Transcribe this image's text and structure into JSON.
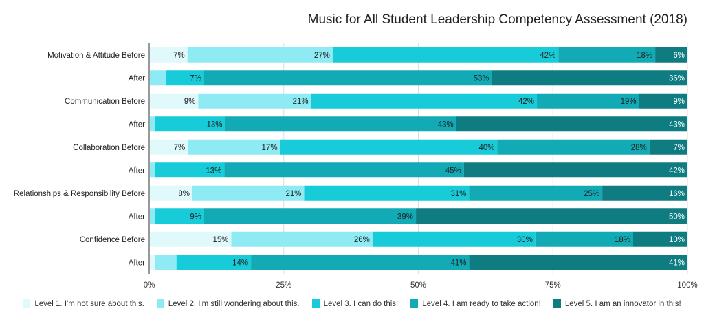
{
  "chart_data": {
    "type": "bar",
    "orientation": "horizontal-stacked-100",
    "title": "Music for All Student Leadership Competency Assessment (2018)",
    "categories": [
      "Motivation & Attitude Before",
      "After",
      "Communication Before",
      "After",
      "Collaboration Before",
      "After",
      "Relationships & Responsibility Before",
      "After",
      "Confidence Before",
      "After"
    ],
    "series": [
      {
        "name": "Level 1. I'm not sure about this.",
        "color": "#e0f9fb",
        "values": [
          7,
          0,
          9,
          0,
          7,
          0,
          8,
          0,
          15,
          1
        ]
      },
      {
        "name": "Level 2. I'm still wondering about this.",
        "color": "#8eeaf3",
        "values": [
          27,
          3,
          21,
          1,
          17,
          1,
          21,
          1,
          26,
          4
        ]
      },
      {
        "name": "Level 3. I can do this!",
        "color": "#17ccd8",
        "values": [
          42,
          7,
          42,
          13,
          40,
          13,
          31,
          9,
          30,
          14
        ]
      },
      {
        "name": "Level 4. I am ready to take action!",
        "color": "#12aab5",
        "values": [
          18,
          53,
          19,
          43,
          28,
          45,
          25,
          39,
          18,
          41
        ]
      },
      {
        "name": "Level 5. I am an innovator in this!",
        "color": "#0e7c80",
        "values": [
          6,
          36,
          9,
          43,
          7,
          42,
          16,
          50,
          10,
          41
        ]
      }
    ],
    "xticks": [
      "0%",
      "25%",
      "50%",
      "75%",
      "100%"
    ],
    "xlim": [
      0,
      100
    ],
    "legend_position": "bottom"
  }
}
